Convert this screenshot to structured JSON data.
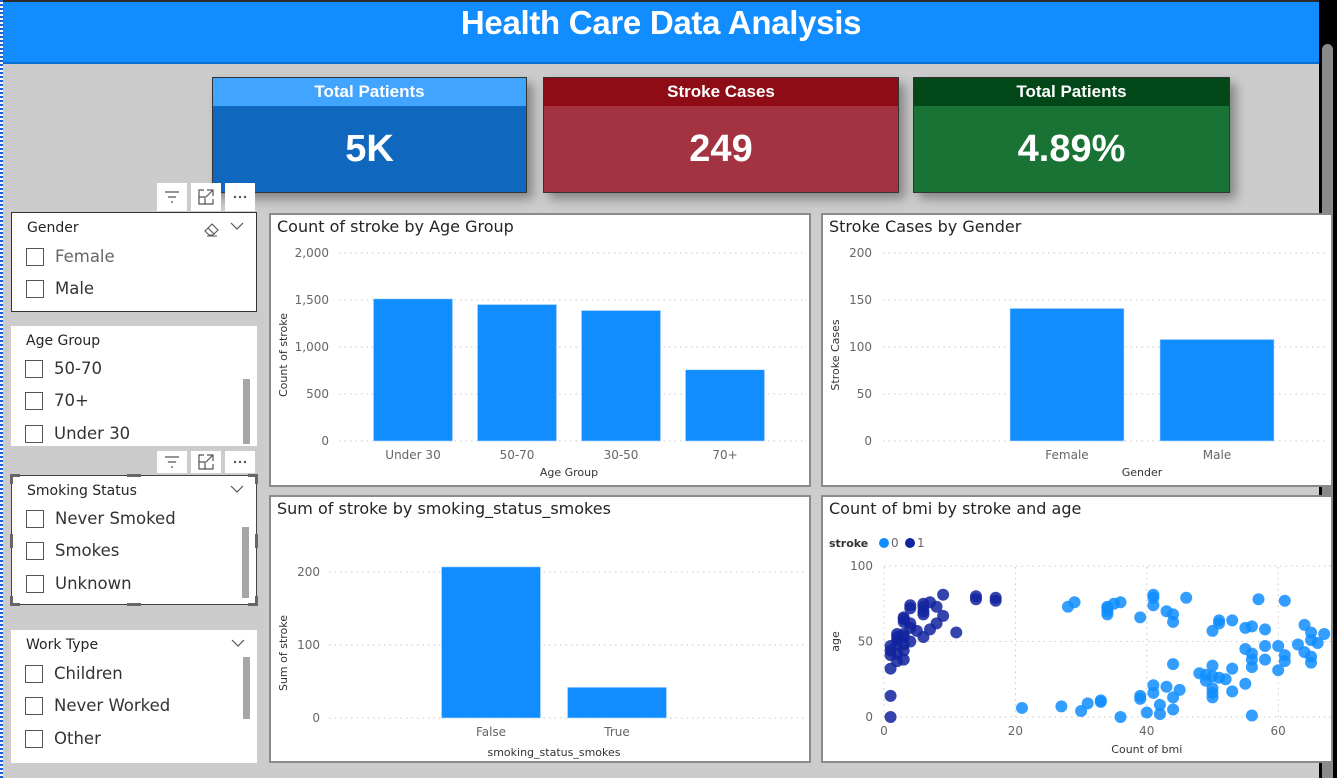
{
  "header": {
    "title": "Health Care Data Analysis"
  },
  "colors": {
    "header_bg": "#118dff",
    "bar": "#118dff",
    "scatter_0": "#118dff",
    "scatter_1": "#12239e",
    "kpi1_title_bg": "#41a4ff",
    "kpi1_value_bg": "#0f68bd",
    "kpi2_title_bg": "#8e0c15",
    "kpi2_value_bg": "#a33341",
    "kpi3_title_bg": "#024718",
    "kpi3_value_bg": "#197335"
  },
  "kpis": [
    {
      "title": "Total Patients",
      "value": "5K"
    },
    {
      "title": "Stroke Cases",
      "value": "249"
    },
    {
      "title": "Total Patients",
      "value": "4.89%"
    }
  ],
  "toolbar_icons": [
    "filter-icon",
    "focus-mode-icon",
    "more-options-icon"
  ],
  "slicers": [
    {
      "title": "Gender",
      "items": [
        "Female",
        "Male"
      ]
    },
    {
      "title": "Age Group",
      "items": [
        "50-70",
        "70+",
        "Under 30"
      ]
    },
    {
      "title": "Smoking Status",
      "items": [
        "Never Smoked",
        "Smokes",
        "Unknown"
      ]
    },
    {
      "title": "Work Type",
      "items": [
        "Children",
        "Never Worked",
        "Other"
      ]
    }
  ],
  "chart_data": [
    {
      "type": "bar",
      "title": "Count of stroke by Age Group",
      "categories": [
        "Under 30",
        "50-70",
        "30-50",
        "70+"
      ],
      "values": [
        1512,
        1452,
        1388,
        758
      ],
      "xlabel": "Age Group",
      "ylabel": "Count of stroke",
      "ylim": [
        0,
        2000
      ],
      "yticks": [
        0,
        500,
        1000,
        1500,
        2000
      ],
      "ytick_labels": [
        "0",
        "500",
        "1,000",
        "1,500",
        "2,000"
      ],
      "grid": true
    },
    {
      "type": "bar",
      "title": "Stroke Cases by Gender",
      "categories": [
        "Female",
        "Male"
      ],
      "values": [
        141,
        108
      ],
      "xlabel": "Gender",
      "ylabel": "Stroke Cases",
      "ylim": [
        0,
        200
      ],
      "yticks": [
        0,
        50,
        100,
        150,
        200
      ],
      "ytick_labels": [
        "0",
        "50",
        "100",
        "150",
        "200"
      ],
      "grid": true
    },
    {
      "type": "bar",
      "title": "Sum of stroke by smoking_status_smokes",
      "categories": [
        "False",
        "True"
      ],
      "values": [
        207,
        42
      ],
      "xlabel": "smoking_status_smokes",
      "ylabel": "Sum of stroke",
      "ylim": [
        0,
        230
      ],
      "yticks": [
        0,
        100,
        200
      ],
      "ytick_labels": [
        "0",
        "100",
        "200"
      ],
      "grid": true
    },
    {
      "type": "scatter",
      "title": "Count of bmi by stroke and age",
      "xlabel": "Count of bmi",
      "ylabel": "age",
      "xlim": [
        0,
        66
      ],
      "ylim": [
        0,
        100
      ],
      "xticks": [
        0,
        20,
        40,
        60
      ],
      "yticks": [
        0,
        50,
        100
      ],
      "legend_title": "stroke",
      "legend_position": "top-left",
      "grid": true,
      "series": [
        {
          "name": "0",
          "points": [
            [
              21,
              6
            ],
            [
              27,
              7
            ],
            [
              28,
              73
            ],
            [
              29,
              76
            ],
            [
              30,
              4
            ],
            [
              31,
              9
            ],
            [
              33,
              10
            ],
            [
              33,
              11
            ],
            [
              34,
              68
            ],
            [
              34,
              70
            ],
            [
              34,
              72
            ],
            [
              34,
              73
            ],
            [
              35,
              75
            ],
            [
              36,
              0
            ],
            [
              36,
              76
            ],
            [
              39,
              66
            ],
            [
              39,
              12
            ],
            [
              39,
              14
            ],
            [
              40,
              3
            ],
            [
              41,
              81
            ],
            [
              41,
              79
            ],
            [
              41,
              74
            ],
            [
              41,
              16
            ],
            [
              41,
              21
            ],
            [
              42,
              2
            ],
            [
              42,
              8
            ],
            [
              43,
              70
            ],
            [
              43,
              20
            ],
            [
              44,
              68
            ],
            [
              44,
              63
            ],
            [
              44,
              35
            ],
            [
              44,
              13
            ],
            [
              44,
              5
            ],
            [
              45,
              18
            ],
            [
              46,
              79
            ],
            [
              48,
              29
            ],
            [
              49,
              28
            ],
            [
              49,
              24
            ],
            [
              50,
              57
            ],
            [
              50,
              34
            ],
            [
              50,
              27
            ],
            [
              50,
              19
            ],
            [
              50,
              16
            ],
            [
              50,
              13
            ],
            [
              51,
              64
            ],
            [
              51,
              62
            ],
            [
              51,
              26
            ],
            [
              52,
              25
            ],
            [
              53,
              64
            ],
            [
              53,
              32
            ],
            [
              53,
              17
            ],
            [
              55,
              59
            ],
            [
              55,
              45
            ],
            [
              55,
              22
            ],
            [
              56,
              60
            ],
            [
              56,
              42
            ],
            [
              56,
              38
            ],
            [
              56,
              33
            ],
            [
              56,
              1
            ],
            [
              57,
              78
            ],
            [
              58,
              58
            ],
            [
              58,
              47
            ],
            [
              58,
              38
            ],
            [
              60,
              47
            ],
            [
              60,
              31
            ],
            [
              61,
              77
            ],
            [
              61,
              41
            ],
            [
              61,
              37
            ],
            [
              63,
              48
            ],
            [
              64,
              61
            ],
            [
              64,
              43
            ],
            [
              65,
              56
            ],
            [
              65,
              51
            ],
            [
              65,
              40
            ],
            [
              65,
              36
            ],
            [
              66,
              49
            ],
            [
              67,
              55
            ]
          ]
        },
        {
          "name": "1",
          "points": [
            [
              1,
              0
            ],
            [
              1,
              14
            ],
            [
              1,
              32
            ],
            [
              1,
              41
            ],
            [
              1,
              44
            ],
            [
              1,
              47
            ],
            [
              2,
              37
            ],
            [
              2,
              42
            ],
            [
              2,
              48
            ],
            [
              2,
              51
            ],
            [
              2,
              53
            ],
            [
              2,
              55
            ],
            [
              3,
              38
            ],
            [
              3,
              44
            ],
            [
              3,
              48
            ],
            [
              3,
              53
            ],
            [
              3,
              55
            ],
            [
              3,
              63
            ],
            [
              3,
              65
            ],
            [
              3,
              66
            ],
            [
              4,
              50
            ],
            [
              4,
              59
            ],
            [
              4,
              62
            ],
            [
              4,
              72
            ],
            [
              4,
              74
            ],
            [
              5,
              57
            ],
            [
              6,
              53
            ],
            [
              6,
              68
            ],
            [
              6,
              70
            ],
            [
              6,
              73
            ],
            [
              6,
              75
            ],
            [
              7,
              58
            ],
            [
              7,
              76
            ],
            [
              8,
              62
            ],
            [
              8,
              73
            ],
            [
              9,
              67
            ],
            [
              9,
              81
            ],
            [
              11,
              56
            ],
            [
              14,
              78
            ],
            [
              14,
              80
            ],
            [
              17,
              77
            ],
            [
              17,
              79
            ]
          ]
        }
      ]
    }
  ]
}
